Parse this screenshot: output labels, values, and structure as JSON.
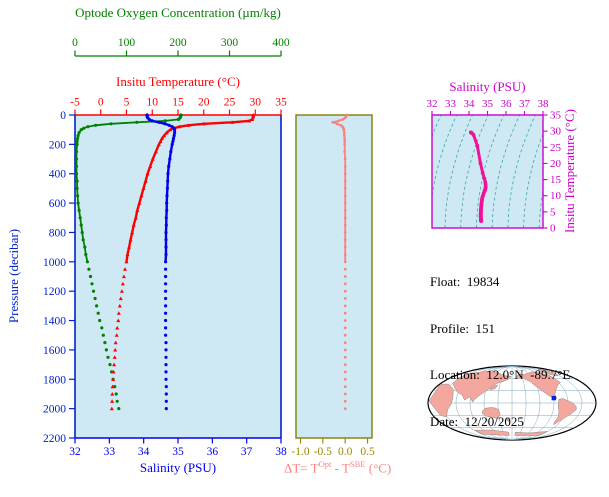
{
  "meta": {
    "lines": [
      "Float:  19834",
      "Profile:  151",
      "Location:  12.0°N  -89.7°E",
      "Date:  12/20/2025"
    ]
  },
  "chart_data": [
    {
      "id": "profiles",
      "type": "line",
      "plot_bg": "#cfe9f4",
      "x_axes": [
        {
          "id": "oxygen",
          "label": "Optode Oxygen Concentration (µm/kg)",
          "color": "#008000",
          "range": [
            0,
            400
          ],
          "ticks": [
            0,
            100,
            200,
            300,
            400
          ]
        },
        {
          "id": "temperature",
          "label": "Insitu Temperature (°C)",
          "color": "#ff0000",
          "range": [
            -5,
            35
          ],
          "ticks": [
            -5,
            0,
            5,
            10,
            15,
            20,
            25,
            30,
            35
          ]
        },
        {
          "id": "salinity",
          "label": "Salinity (PSU)",
          "color": "#0000ee",
          "range": [
            32,
            38
          ],
          "ticks": [
            32,
            33,
            34,
            35,
            36,
            37,
            38
          ]
        }
      ],
      "y_axis": {
        "label": "Pressure (decibar)",
        "color": "#0022cc",
        "range": [
          0,
          2200
        ],
        "ticks": [
          0,
          200,
          400,
          600,
          800,
          1000,
          1200,
          1400,
          1600,
          1800,
          2000,
          2200
        ]
      },
      "pressure": [
        0,
        10,
        20,
        30,
        40,
        50,
        60,
        70,
        80,
        90,
        100,
        120,
        140,
        160,
        180,
        200,
        250,
        300,
        350,
        400,
        450,
        500,
        550,
        600,
        650,
        700,
        750,
        800,
        850,
        900,
        950,
        1000,
        1050,
        1100,
        1150,
        1200,
        1250,
        1300,
        1350,
        1400,
        1450,
        1500,
        1550,
        1600,
        1650,
        1700,
        1750,
        1800,
        1850,
        1900,
        1950,
        2000
      ],
      "series": [
        {
          "name": "oxygen",
          "axis": "oxygen",
          "color": "#008000",
          "marker": "circle",
          "values": [
            206,
            205,
            204,
            201,
            175,
            120,
            70,
            40,
            25,
            17,
            12,
            8,
            6,
            5,
            4,
            4,
            3,
            3,
            3,
            3,
            4,
            4,
            5,
            6,
            8,
            10,
            12,
            14,
            16,
            19,
            21,
            24,
            27,
            30,
            33,
            36,
            39,
            42,
            45,
            48,
            52,
            55,
            58,
            61,
            64,
            68,
            71,
            74,
            77,
            80,
            82,
            85
          ]
        },
        {
          "name": "temperature",
          "axis": "temperature",
          "color": "#ff0000",
          "marker": "triangle",
          "values": [
            29.6,
            29.6,
            29.5,
            29.4,
            28.8,
            25.5,
            20.0,
            17.0,
            15.3,
            14.2,
            13.5,
            12.8,
            12.3,
            11.9,
            11.6,
            11.3,
            10.7,
            10.1,
            9.6,
            9.1,
            8.7,
            8.3,
            7.9,
            7.5,
            7.1,
            6.8,
            6.4,
            6.1,
            5.8,
            5.5,
            5.2,
            5.0,
            4.7,
            4.5,
            4.3,
            4.1,
            3.9,
            3.7,
            3.5,
            3.4,
            3.2,
            3.1,
            2.9,
            2.8,
            2.7,
            2.6,
            2.5,
            2.4,
            2.3,
            2.25,
            2.2,
            2.15
          ]
        },
        {
          "name": "salinity",
          "axis": "salinity",
          "color": "#0000ee",
          "marker": "circle",
          "values": [
            34.1,
            34.1,
            34.12,
            34.16,
            34.25,
            34.45,
            34.62,
            34.74,
            34.83,
            34.88,
            34.9,
            34.9,
            34.89,
            34.87,
            34.85,
            34.83,
            34.79,
            34.76,
            34.73,
            34.71,
            34.7,
            34.69,
            34.68,
            34.67,
            34.67,
            34.66,
            34.66,
            34.65,
            34.65,
            34.65,
            34.65,
            34.64,
            34.64,
            34.64,
            34.64,
            34.64,
            34.64,
            34.64,
            34.64,
            34.64,
            34.64,
            34.64,
            34.65,
            34.65,
            34.65,
            34.65,
            34.65,
            34.65,
            34.66,
            34.66,
            34.66,
            34.66
          ]
        }
      ]
    },
    {
      "id": "temperature-difference",
      "type": "line",
      "plot_bg": "#cfe9f4",
      "frame_color": "#808000",
      "x_axis": {
        "range": [
          -1.1,
          0.6
        ],
        "ticks": [
          -1.0,
          -0.5,
          0.0,
          0.5
        ],
        "tick_labels": [
          "-1.0",
          "-0.5",
          "0.0",
          "0.5"
        ],
        "tick_color": "#9a8a00",
        "label_parts": {
          "prefix": "ΔT= T",
          "sup1": "Opt",
          "mid": " - T",
          "sup2": "SBE",
          "suffix": " (°C)"
        },
        "label_color": "#ff8080"
      },
      "series": [
        {
          "name": "delta-t",
          "color": "#ff8080",
          "marker": "circle",
          "values": [
            0.04,
            0.02,
            0.0,
            -0.05,
            -0.15,
            -0.28,
            -0.18,
            -0.1,
            -0.06,
            -0.04,
            -0.03,
            -0.02,
            -0.02,
            -0.01,
            -0.01,
            -0.01,
            -0.01,
            0,
            0,
            0,
            0,
            0,
            0,
            0,
            0,
            0,
            0,
            0,
            0,
            0,
            0,
            0,
            0,
            0,
            0,
            0,
            0,
            0,
            0,
            0,
            0,
            0,
            0,
            0,
            0,
            0,
            0,
            0,
            0,
            0,
            0,
            0
          ]
        }
      ]
    },
    {
      "id": "ts-diagram",
      "type": "line",
      "plot_bg": "#cfe9f4",
      "frame_color": "#cc00cc",
      "x_axis": {
        "label": "Salinity (PSU)",
        "color": "#cc00cc",
        "range": [
          32,
          38
        ],
        "ticks": [
          32,
          33,
          34,
          35,
          36,
          37,
          38
        ]
      },
      "y_axis": {
        "label": "Insitu Temperature (°C)",
        "color": "#cc00cc",
        "range": [
          0,
          35
        ],
        "ticks": [
          0,
          5,
          10,
          15,
          20,
          25,
          30,
          35
        ]
      },
      "curve_color": "#ee1199",
      "contour_color": "#3aa6a6",
      "series_from": "profiles"
    },
    {
      "id": "location-map",
      "type": "map",
      "marker": {
        "lat": 12.0,
        "lon": -89.7,
        "color": "#0022dd"
      },
      "land_color": "#f4a79e",
      "ocean_color": "#ffffff",
      "outline_color": "#000000",
      "graticule_color": "#7fa8ba"
    }
  ]
}
